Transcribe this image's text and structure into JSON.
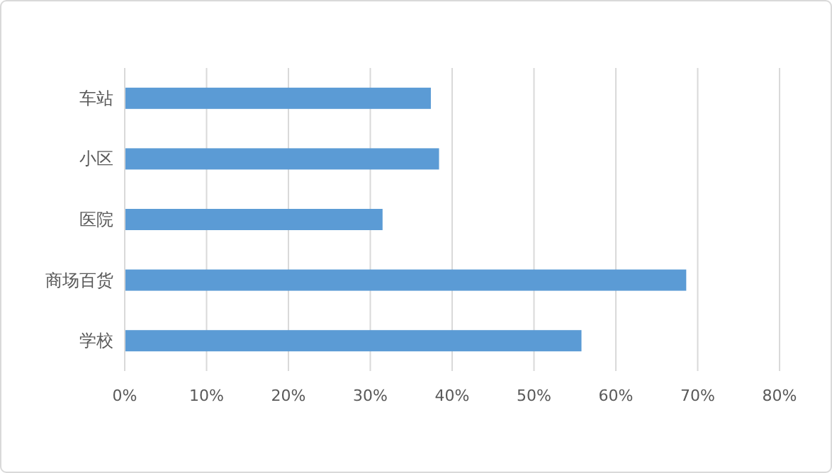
{
  "chart_data": {
    "type": "bar",
    "orientation": "horizontal",
    "categories": [
      "车站",
      "小区",
      "医院",
      "商场百货",
      "学校"
    ],
    "values": [
      37.4,
      38.4,
      31.5,
      68.6,
      55.8
    ],
    "color": "#5b9bd5",
    "xlim": [
      0,
      80
    ],
    "xticks": [
      {
        "value": 0,
        "label": "0%"
      },
      {
        "value": 10,
        "label": "10%"
      },
      {
        "value": 20,
        "label": "20%"
      },
      {
        "value": 30,
        "label": "30%"
      },
      {
        "value": 40,
        "label": "40%"
      },
      {
        "value": 50,
        "label": "50%"
      },
      {
        "value": 60,
        "label": "60%"
      },
      {
        "value": 70,
        "label": "70%"
      },
      {
        "value": 80,
        "label": "80%"
      }
    ],
    "grid": "x"
  }
}
